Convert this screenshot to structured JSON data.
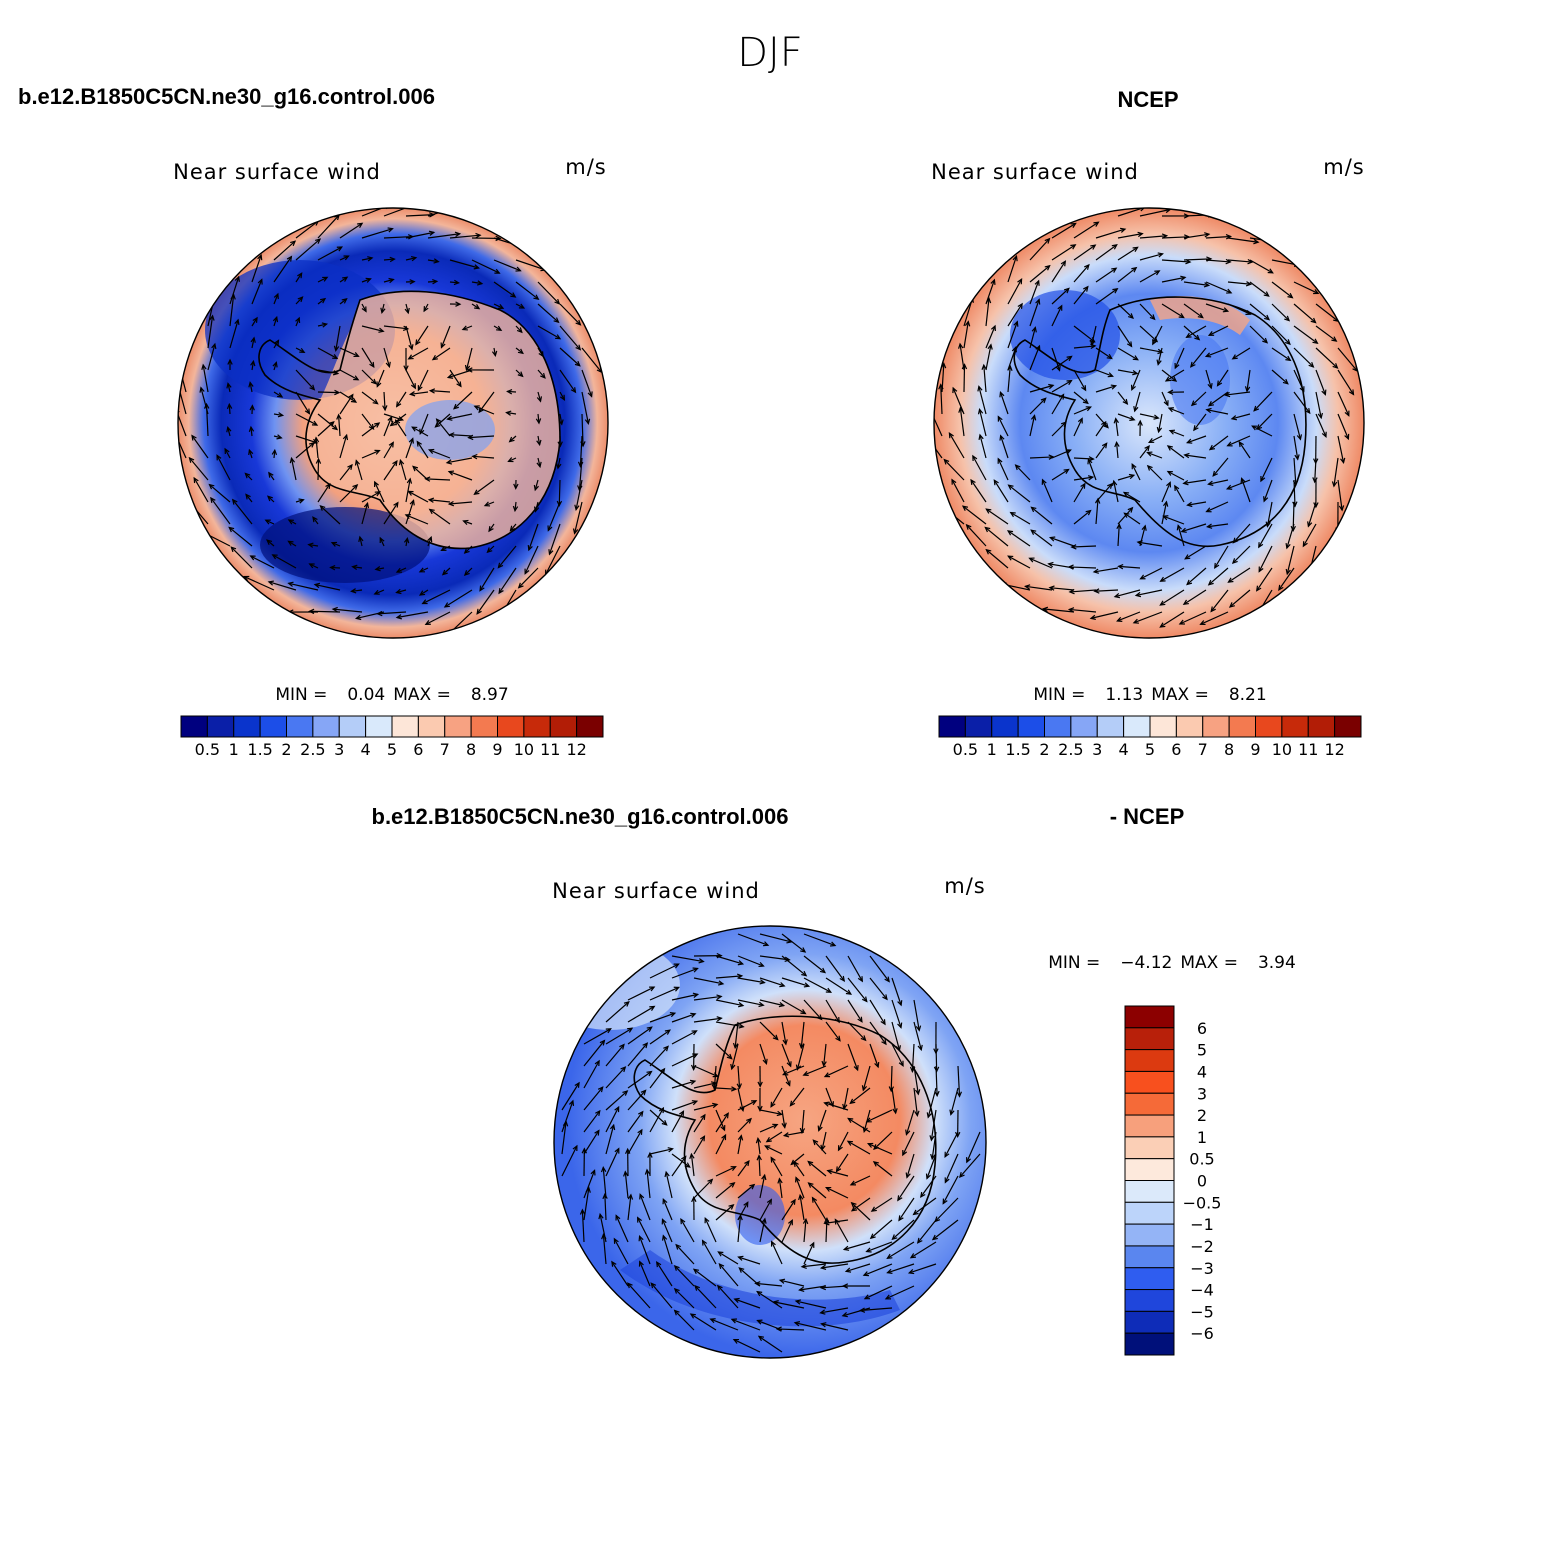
{
  "figure": {
    "title": "DJF",
    "case_left_label": "b.e12.B1850C5CN.ne30_g16.control.006",
    "case_right_label": "NCEP",
    "diff_left_label": "b.e12.B1850C5CN.ne30_g16.control.006",
    "diff_right_label": "- NCEP"
  },
  "chart_data": [
    {
      "type": "heatmap",
      "projection": "south-polar-stereographic",
      "field_label": "Near surface wind",
      "units": "m/s",
      "stats": {
        "min_label": "MIN =",
        "min": "0.04",
        "max_label": "MAX =",
        "max": "8.97"
      },
      "colorbar": {
        "orientation": "horizontal",
        "levels": [
          "0.5",
          "1",
          "1.5",
          "2",
          "2.5",
          "3",
          "4",
          "5",
          "6",
          "7",
          "8",
          "9",
          "10",
          "11",
          "12"
        ],
        "colors": [
          "#00007f",
          "#0a1fa8",
          "#0a34cc",
          "#1c4ee8",
          "#4a78f2",
          "#86a6f6",
          "#b4cdf8",
          "#d9e9fb",
          "#fde6d8",
          "#fbcab0",
          "#f7a282",
          "#f37a50",
          "#e8481e",
          "#c72a0a",
          "#b21d06",
          "#7a0000"
        ]
      }
    },
    {
      "type": "heatmap",
      "projection": "south-polar-stereographic",
      "field_label": "Near surface wind",
      "units": "m/s",
      "stats": {
        "min_label": "MIN =",
        "min": "1.13",
        "max_label": "MAX =",
        "max": "8.21"
      },
      "colorbar": {
        "orientation": "horizontal",
        "levels": [
          "0.5",
          "1",
          "1.5",
          "2",
          "2.5",
          "3",
          "4",
          "5",
          "6",
          "7",
          "8",
          "9",
          "10",
          "11",
          "12"
        ],
        "colors": [
          "#00007f",
          "#0a1fa8",
          "#0a34cc",
          "#1c4ee8",
          "#4a78f2",
          "#86a6f6",
          "#b4cdf8",
          "#d9e9fb",
          "#fde6d8",
          "#fbcab0",
          "#f7a282",
          "#f37a50",
          "#e8481e",
          "#c72a0a",
          "#b21d06",
          "#7a0000"
        ]
      }
    },
    {
      "type": "heatmap",
      "projection": "south-polar-stereographic",
      "field_label": "Near surface wind",
      "units": "m/s",
      "stats": {
        "min_label": "MIN =",
        "min": "−4.12",
        "max_label": "MAX =",
        "max": "3.94"
      },
      "colorbar": {
        "orientation": "vertical",
        "levels": [
          "6",
          "5",
          "4",
          "3",
          "2",
          "1",
          "0.5",
          "0",
          "−0.5",
          "−1",
          "−2",
          "−3",
          "−4",
          "−5",
          "−6"
        ],
        "colors": [
          "#8c0000",
          "#b8200a",
          "#dc3a10",
          "#f8501e",
          "#f56a38",
          "#f7a07c",
          "#fbcfb6",
          "#fde9dc",
          "#dbe9fa",
          "#bcd4fa",
          "#94b4f6",
          "#5a86ef",
          "#2f5df0",
          "#1f46dc",
          "#0e2cb8",
          "#00107a"
        ]
      }
    }
  ]
}
